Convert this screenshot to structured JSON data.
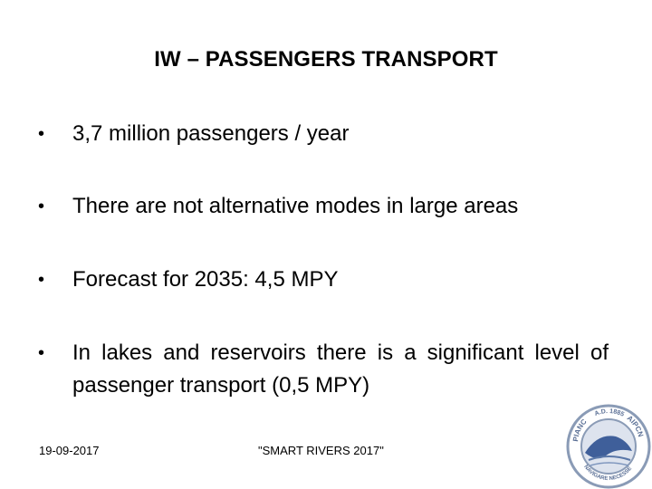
{
  "slide": {
    "title": "IW – PASSENGERS TRANSPORT",
    "bullets": [
      "3,7 million passengers / year",
      "There are not alternative modes in large areas",
      "Forecast for 2035: 4,5 MPY",
      "In lakes and reservoirs there is a significant level of passenger transport (0,5 MPY)"
    ],
    "bullet_symbol": "•"
  },
  "footer": {
    "date": "19-09-2017",
    "event": "\"SMART RIVERS 2017\""
  },
  "logo": {
    "icon": "pianc-aipcn-logo-icon",
    "text_left": "PIANC",
    "text_right": "AIPCN",
    "text_top": "A.D. 1885",
    "text_bottom": "NAVIGARE NECESSE",
    "ring_color": "#8a9bb6",
    "center_color": "#3f5f9a"
  }
}
